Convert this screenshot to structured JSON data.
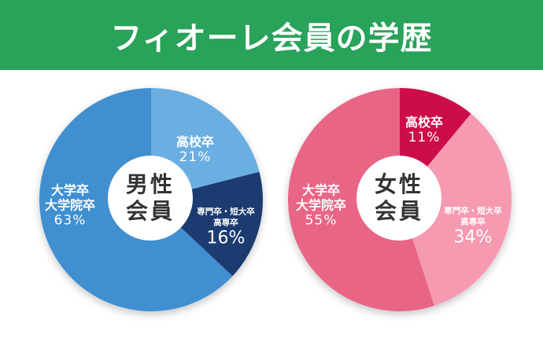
{
  "header": {
    "title": "フィオーレ会員の学歴",
    "bg_color": "#29a25a"
  },
  "chart_data": [
    {
      "type": "pie",
      "title": "男性会員",
      "center_label": "男性会員",
      "start_angle_deg": 0,
      "direction": "clockwise",
      "slices": [
        {
          "label": "高校卒",
          "value": 21,
          "color": "#6aaee2"
        },
        {
          "label": "専門卒・短大卒 高専卒",
          "value": 16,
          "color": "#1c3a70"
        },
        {
          "label": "大学卒 大学院卒",
          "value": 63,
          "color": "#3f8fd0"
        }
      ]
    },
    {
      "type": "pie",
      "title": "女性会員",
      "center_label": "女性会員",
      "start_angle_deg": 0,
      "direction": "clockwise",
      "slices": [
        {
          "label": "高校卒",
          "value": 11,
          "color": "#cc0a4a"
        },
        {
          "label": "専門卒・短大卒 高専卒",
          "value": 34,
          "color": "#f59ab1"
        },
        {
          "label": "大学卒 大学院卒",
          "value": 55,
          "color": "#e96585"
        }
      ]
    }
  ],
  "male": {
    "center": "男性\n会員",
    "center_l1": "男性",
    "center_l2": "会員",
    "hs": {
      "t": "高校卒",
      "p": "21%"
    },
    "voc": {
      "t1": "専門卒・短大卒",
      "t2": "高専卒",
      "p": "16%"
    },
    "uni": {
      "t1": "大学卒",
      "t2": "大学院卒",
      "p": "63%"
    }
  },
  "female": {
    "center_l1": "女性",
    "center_l2": "会員",
    "hs": {
      "t": "高校卒",
      "p": "11%"
    },
    "voc": {
      "t1": "専門卒・短大卒",
      "t2": "高専卒",
      "p": "34%"
    },
    "uni": {
      "t1": "大学卒",
      "t2": "大学院卒",
      "p": "55%"
    }
  }
}
